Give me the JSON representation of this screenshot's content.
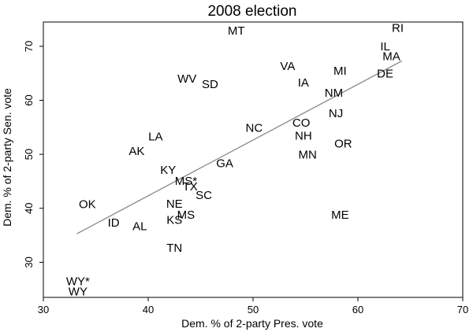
{
  "chart_data": {
    "type": "scatter",
    "title": "2008 election",
    "xlabel": "Dem. % of 2-party Pres. vote",
    "ylabel": "Dem. % of 2-party Sen. vote",
    "xlim": [
      30,
      70
    ],
    "ylim": [
      23.5,
      74.5
    ],
    "xticks": [
      30,
      40,
      50,
      60,
      70
    ],
    "yticks": [
      30,
      40,
      50,
      60,
      70
    ],
    "grid": false,
    "points": [
      {
        "label": "RI",
        "x": 63.8,
        "y": 73.3
      },
      {
        "label": "MT",
        "x": 48.4,
        "y": 72.8
      },
      {
        "label": "IL",
        "x": 62.6,
        "y": 69.9
      },
      {
        "label": "MA",
        "x": 63.2,
        "y": 68.1
      },
      {
        "label": "VA",
        "x": 53.3,
        "y": 66.3
      },
      {
        "label": "MI",
        "x": 58.3,
        "y": 65.4
      },
      {
        "label": "DE",
        "x": 62.6,
        "y": 64.9
      },
      {
        "label": "WV",
        "x": 43.7,
        "y": 63.9
      },
      {
        "label": "SD",
        "x": 45.9,
        "y": 62.9
      },
      {
        "label": "IA",
        "x": 54.8,
        "y": 63.2
      },
      {
        "label": "NM",
        "x": 57.7,
        "y": 61.3
      },
      {
        "label": "NJ",
        "x": 57.9,
        "y": 57.5
      },
      {
        "label": "CO",
        "x": 54.6,
        "y": 55.8
      },
      {
        "label": "NC",
        "x": 50.1,
        "y": 54.8
      },
      {
        "label": "NH",
        "x": 54.8,
        "y": 53.4
      },
      {
        "label": "LA",
        "x": 40.7,
        "y": 53.2
      },
      {
        "label": "OR",
        "x": 58.6,
        "y": 51.9
      },
      {
        "label": "AK",
        "x": 38.9,
        "y": 50.5
      },
      {
        "label": "MN",
        "x": 55.2,
        "y": 49.9
      },
      {
        "label": "GA",
        "x": 47.3,
        "y": 48.3
      },
      {
        "label": "KY",
        "x": 41.9,
        "y": 47.0
      },
      {
        "label": "MS*",
        "x": 43.6,
        "y": 45.0
      },
      {
        "label": "TX",
        "x": 44.0,
        "y": 44.0
      },
      {
        "label": "SC",
        "x": 45.3,
        "y": 42.4
      },
      {
        "label": "NE",
        "x": 42.5,
        "y": 40.8
      },
      {
        "label": "OK",
        "x": 34.2,
        "y": 40.7
      },
      {
        "label": "MS",
        "x": 43.6,
        "y": 38.7
      },
      {
        "label": "KS",
        "x": 42.5,
        "y": 37.8
      },
      {
        "label": "ME",
        "x": 58.3,
        "y": 38.7
      },
      {
        "label": "ID",
        "x": 36.7,
        "y": 37.3
      },
      {
        "label": "AL",
        "x": 39.2,
        "y": 36.6
      },
      {
        "label": "TN",
        "x": 42.5,
        "y": 32.6
      },
      {
        "label": "WY*",
        "x": 33.3,
        "y": 26.4
      },
      {
        "label": "WY",
        "x": 33.3,
        "y": 24.5
      }
    ],
    "fit_line": {
      "x": [
        33.2,
        64.2
      ],
      "y": [
        35.3,
        67.3
      ]
    },
    "colors": {
      "fit_line": "#888888",
      "text": "#000000"
    }
  }
}
